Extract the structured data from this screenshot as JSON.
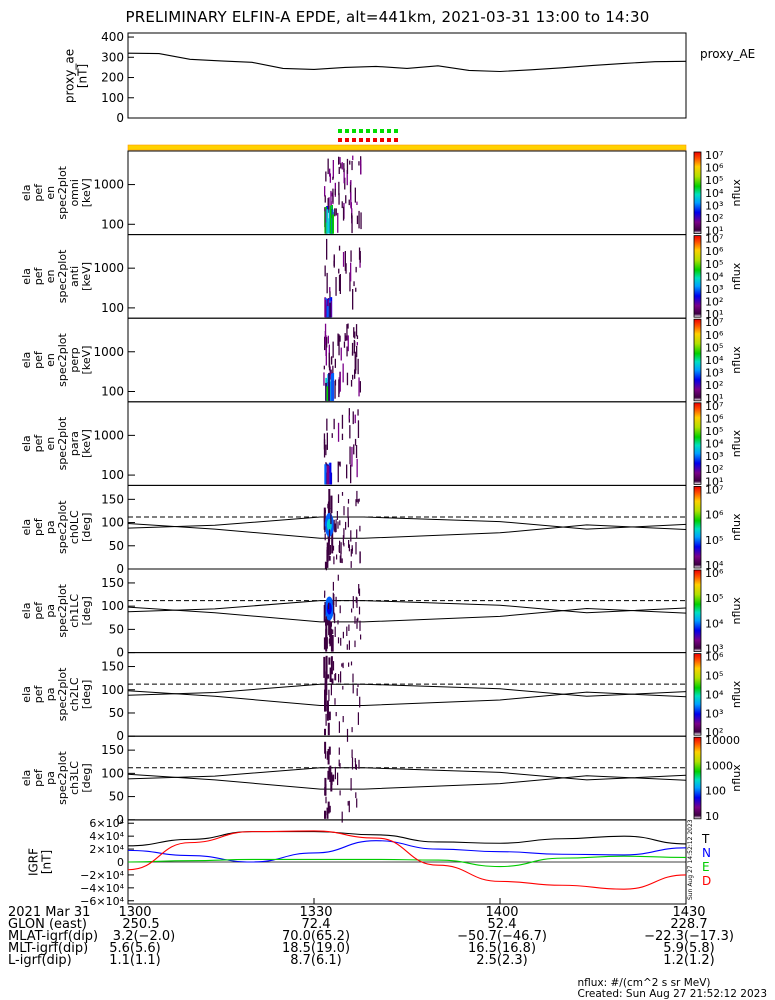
{
  "title": "PRELIMINARY ELFIN-A EPDE, alt=441km, 2021-03-31 13:00 to 14:30",
  "ae_panel": {
    "ylabel_lines": [
      "proxy_ae",
      "[nT]"
    ],
    "yticks": [
      "400",
      "300",
      "200",
      "100",
      "0"
    ],
    "ylim": [
      0,
      420
    ],
    "series_label": "proxy_AE"
  },
  "spec_panels": [
    {
      "ylabel_lines": [
        "ela",
        "pef",
        "en",
        "spec2plot",
        "omni",
        "[keV]"
      ],
      "yticks": [
        "1000",
        "100"
      ],
      "cb_label": "nflux",
      "cb_ticks": [
        "10⁷",
        "10⁶",
        "10⁵",
        "10⁴",
        "10³",
        "10²",
        "10¹"
      ],
      "kind": "energy",
      "intensity": 1.0
    },
    {
      "ylabel_lines": [
        "ela",
        "pef",
        "en",
        "spec2plot",
        "anti",
        "[keV]"
      ],
      "yticks": [
        "1000",
        "100"
      ],
      "cb_label": "nflux",
      "cb_ticks": [
        "10⁷",
        "10⁶",
        "10⁵",
        "10⁴",
        "10³",
        "10²",
        "10¹"
      ],
      "kind": "energy",
      "intensity": 0.45
    },
    {
      "ylabel_lines": [
        "ela",
        "pef",
        "en",
        "spec2plot",
        "perp",
        "[keV]"
      ],
      "yticks": [
        "1000",
        "100"
      ],
      "cb_label": "nflux",
      "cb_ticks": [
        "10⁷",
        "10⁶",
        "10⁵",
        "10⁴",
        "10³",
        "10²",
        "10¹"
      ],
      "kind": "energy",
      "intensity": 1.0
    },
    {
      "ylabel_lines": [
        "ela",
        "pef",
        "en",
        "spec2plot",
        "para",
        "[keV]"
      ],
      "yticks": [
        "1000",
        "100"
      ],
      "cb_label": "nflux",
      "cb_ticks": [
        "10⁷",
        "10⁶",
        "10⁵",
        "10⁴",
        "10³",
        "10²",
        "10¹"
      ],
      "kind": "energy",
      "intensity": 0.5
    },
    {
      "ylabel_lines": [
        "ela",
        "pef",
        "pa",
        "spec2plot",
        "ch0LC",
        "[deg]"
      ],
      "yticks": [
        "150",
        "100",
        "50",
        "0"
      ],
      "cb_label": "nflux",
      "cb_ticks": [
        "10⁷",
        "10⁶",
        "10⁵",
        "10⁴"
      ],
      "kind": "pa",
      "intensity": 1.0
    },
    {
      "ylabel_lines": [
        "ela",
        "pef",
        "pa",
        "spec2plot",
        "ch1LC",
        "[deg]"
      ],
      "yticks": [
        "150",
        "100",
        "50",
        "0"
      ],
      "cb_label": "nflux",
      "cb_ticks": [
        "10⁶",
        "10⁵",
        "10⁴",
        "10³"
      ],
      "kind": "pa",
      "intensity": 0.85
    },
    {
      "ylabel_lines": [
        "ela",
        "pef",
        "pa",
        "spec2plot",
        "ch2LC",
        "[deg]"
      ],
      "yticks": [
        "150",
        "100",
        "50",
        "0"
      ],
      "cb_label": "nflux",
      "cb_ticks": [
        "10⁶",
        "10⁵",
        "10⁴",
        "10³",
        "10²"
      ],
      "kind": "pa",
      "intensity": 0.55
    },
    {
      "ylabel_lines": [
        "ela",
        "pef",
        "pa",
        "spec2plot",
        "ch3LC",
        "[deg]"
      ],
      "yticks": [
        "150",
        "100",
        "50",
        "0"
      ],
      "cb_label": "nflux",
      "cb_ticks": [
        "10000",
        "1000",
        "100",
        "10"
      ],
      "kind": "pa",
      "intensity": 0.45
    }
  ],
  "igrf_panel": {
    "ylabel_lines": [
      "IGRF",
      "[nT]"
    ],
    "yticks": [
      "6×10⁴",
      "4×10⁴",
      "2×10⁴",
      "0",
      "−2×10⁴",
      "−4×10⁴",
      "−6×10⁴"
    ],
    "legend": [
      {
        "label": "T",
        "color": "#000000"
      },
      {
        "label": "N",
        "color": "#0000ff"
      },
      {
        "label": "E",
        "color": "#00cc00"
      },
      {
        "label": "D",
        "color": "#ff0000"
      }
    ],
    "side_note": "Sun Aug 27 14:52:12 2023"
  },
  "chart_data": [
    {
      "type": "line",
      "title": "PRELIMINARY ELFIN-A EPDE, alt=441km, 2021-03-31 13:00 to 14:30",
      "ylabel": "proxy_ae [nT]",
      "ylim": [
        0,
        420
      ],
      "x_minutes": [
        0,
        5,
        10,
        15,
        20,
        25,
        30,
        35,
        40,
        45,
        50,
        55,
        60,
        65,
        70,
        75,
        80,
        85,
        90
      ],
      "series": [
        {
          "name": "proxy_AE",
          "color": "#000000",
          "values": [
            320,
            318,
            290,
            282,
            275,
            245,
            240,
            250,
            255,
            245,
            258,
            235,
            230,
            238,
            248,
            260,
            270,
            278,
            280
          ]
        }
      ]
    },
    {
      "type": "heatmap",
      "ylabel": "[keV]",
      "ylim_log": [
        55,
        7000
      ],
      "activity_window_minutes": [
        31.5,
        37.5
      ],
      "series_colorbar": "nflux"
    },
    {
      "type": "line",
      "ylabel": "IGRF [nT]",
      "ylim": [
        -65000,
        65000
      ],
      "x_minutes": [
        0,
        10,
        20,
        30,
        40,
        50,
        60,
        70,
        80,
        90
      ],
      "series": [
        {
          "name": "T",
          "color": "#000000",
          "values": [
            25000,
            35000,
            47000,
            47000,
            42000,
            31000,
            29000,
            36000,
            40000,
            28000
          ]
        },
        {
          "name": "N",
          "color": "#0000ff",
          "values": [
            18000,
            10000,
            0,
            14000,
            33000,
            20000,
            16000,
            12000,
            11000,
            22000
          ]
        },
        {
          "name": "E",
          "color": "#00cc00",
          "values": [
            0,
            2000,
            4000,
            4000,
            4000,
            3000,
            -7000,
            6000,
            9000,
            7000
          ]
        },
        {
          "name": "D",
          "color": "#ff0000",
          "values": [
            -12000,
            30000,
            47000,
            48000,
            37000,
            -5000,
            -30000,
            -36000,
            -42000,
            -20000
          ]
        }
      ]
    }
  ],
  "footer": {
    "row_labels": [
      "2021 Mar 31",
      "GLON (east)",
      "MLAT-igrf(dip)",
      "MLT-igrf(dip)",
      "L-igrf(dip)"
    ],
    "columns": [
      {
        "values": [
          "1300",
          "250.5",
          "3.2(−2.0)",
          "5.6(5.6)",
          "1.1(1.1)"
        ]
      },
      {
        "values": [
          "1330",
          "72.4",
          "70.0(65.2)",
          "18.5(19.0)",
          "8.7(6.1)"
        ]
      },
      {
        "values": [
          "1400",
          "52.4",
          "−50.7(−46.7)",
          "16.5(16.8)",
          "2.5(2.3)"
        ]
      },
      {
        "values": [
          "1430",
          "228.7",
          "−22.3(−17.3)",
          "5.9(5.8)",
          "1.2(1.2)"
        ]
      }
    ],
    "note_units": "nflux: #/(cm^2 s sr MeV)",
    "note_created": "Created: Sun Aug 27 21:52:12 2023"
  },
  "colors": {
    "axis": "#000000",
    "status_bar": "#ffd200",
    "status_bar_edge": "#ff9900",
    "marker_green": "#00dd00",
    "marker_red": "#ee0000"
  }
}
